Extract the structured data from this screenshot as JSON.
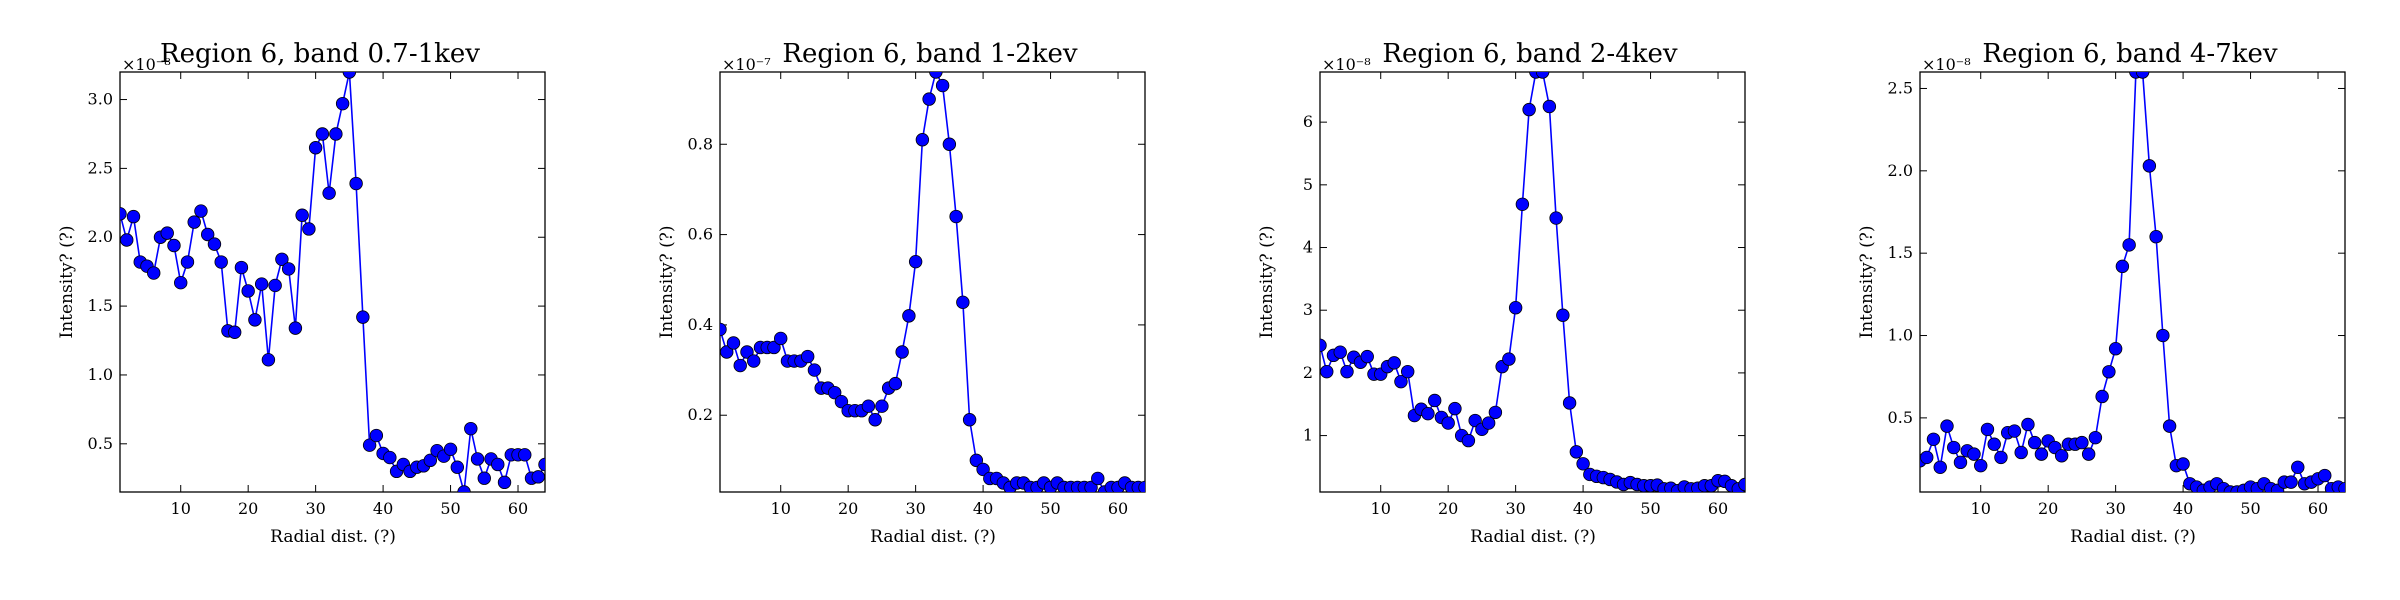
{
  "chart_data": [
    {
      "type": "line",
      "title": "Region 6, band 0.7-1kev",
      "xlabel": "Radial dist. (?)",
      "ylabel": "Intensity? (?)",
      "y_multiplier_label": "×10⁻⁸",
      "xlim": [
        1,
        64
      ],
      "ylim": [
        0.15,
        3.2
      ],
      "xticks": [
        10,
        20,
        30,
        40,
        50,
        60
      ],
      "yticks": [
        0.5,
        1.0,
        1.5,
        2.0,
        2.5,
        3.0
      ],
      "ytick_labels": [
        "0.5",
        "1.0",
        "1.5",
        "2.0",
        "2.5",
        "3.0"
      ],
      "series_color": "#0000ff",
      "series": [
        {
          "x": [
            1,
            2,
            3,
            4,
            5,
            6,
            7,
            8,
            9,
            10,
            11,
            12,
            13,
            14,
            15,
            16,
            17,
            18,
            19,
            20,
            21,
            22,
            23,
            24,
            25,
            26,
            27,
            28,
            29,
            30,
            31,
            32,
            33,
            34,
            35,
            36,
            37,
            38,
            39,
            40,
            41,
            42,
            43,
            44,
            45,
            46,
            47,
            48,
            49,
            50,
            51,
            52,
            53,
            54,
            55,
            56,
            57,
            58,
            59,
            60,
            61,
            62,
            63,
            64
          ],
          "y": [
            2.17,
            1.98,
            2.15,
            1.82,
            1.79,
            1.74,
            2.0,
            2.03,
            1.94,
            1.67,
            1.82,
            2.11,
            2.19,
            2.02,
            1.95,
            1.82,
            1.32,
            1.31,
            1.78,
            1.61,
            1.4,
            1.66,
            1.11,
            1.65,
            1.84,
            1.77,
            1.34,
            2.16,
            2.06,
            2.65,
            2.75,
            2.32,
            2.75,
            2.97,
            3.2,
            2.39,
            1.42,
            0.49,
            0.56,
            0.43,
            0.4,
            0.3,
            0.35,
            0.3,
            0.33,
            0.34,
            0.38,
            0.45,
            0.41,
            0.46,
            0.33,
            0.15,
            0.61,
            0.39,
            0.25,
            0.39,
            0.35,
            0.22,
            0.42,
            0.42,
            0.42,
            0.25,
            0.26,
            0.35
          ]
        }
      ]
    },
    {
      "type": "line",
      "title": "Region 6, band 1-2kev",
      "xlabel": "Radial dist. (?)",
      "ylabel": "Intensity? (?)",
      "y_multiplier_label": "×10⁻⁷",
      "xlim": [
        1,
        64
      ],
      "ylim": [
        0.03,
        0.96
      ],
      "xticks": [
        10,
        20,
        30,
        40,
        50,
        60
      ],
      "yticks": [
        0.2,
        0.4,
        0.6,
        0.8
      ],
      "ytick_labels": [
        "0.2",
        "0.4",
        "0.6",
        "0.8"
      ],
      "series_color": "#0000ff",
      "series": [
        {
          "x": [
            1,
            2,
            3,
            4,
            5,
            6,
            7,
            8,
            9,
            10,
            11,
            12,
            13,
            14,
            15,
            16,
            17,
            18,
            19,
            20,
            21,
            22,
            23,
            24,
            25,
            26,
            27,
            28,
            29,
            30,
            31,
            32,
            33,
            34,
            35,
            36,
            37,
            38,
            39,
            40,
            41,
            42,
            43,
            44,
            45,
            46,
            47,
            48,
            49,
            50,
            51,
            52,
            53,
            54,
            55,
            56,
            57,
            58,
            59,
            60,
            61,
            62,
            63,
            64
          ],
          "y": [
            0.39,
            0.34,
            0.36,
            0.31,
            0.34,
            0.32,
            0.35,
            0.35,
            0.35,
            0.37,
            0.32,
            0.32,
            0.32,
            0.33,
            0.3,
            0.26,
            0.26,
            0.25,
            0.23,
            0.21,
            0.21,
            0.21,
            0.22,
            0.19,
            0.22,
            0.26,
            0.27,
            0.34,
            0.42,
            0.54,
            0.81,
            0.9,
            0.96,
            0.93,
            0.8,
            0.64,
            0.45,
            0.19,
            0.1,
            0.08,
            0.06,
            0.06,
            0.05,
            0.04,
            0.05,
            0.05,
            0.04,
            0.04,
            0.05,
            0.04,
            0.05,
            0.04,
            0.04,
            0.04,
            0.04,
            0.04,
            0.06,
            0.03,
            0.04,
            0.04,
            0.05,
            0.04,
            0.04,
            0.04
          ]
        }
      ]
    },
    {
      "type": "line",
      "title": "Region 6, band 2-4kev",
      "xlabel": "Radial dist. (?)",
      "ylabel": "Intensity? (?)",
      "y_multiplier_label": "×10⁻⁸",
      "xlim": [
        1,
        64
      ],
      "ylim": [
        0.1,
        6.8
      ],
      "xticks": [
        10,
        20,
        30,
        40,
        50,
        60
      ],
      "yticks": [
        1,
        2,
        3,
        4,
        5,
        6
      ],
      "ytick_labels": [
        "1",
        "2",
        "3",
        "4",
        "5",
        "6"
      ],
      "series_color": "#0000ff",
      "series": [
        {
          "x": [
            1,
            2,
            3,
            4,
            5,
            6,
            7,
            8,
            9,
            10,
            11,
            12,
            13,
            14,
            15,
            16,
            17,
            18,
            19,
            20,
            21,
            22,
            23,
            24,
            25,
            26,
            27,
            28,
            29,
            30,
            31,
            32,
            33,
            34,
            35,
            36,
            37,
            38,
            39,
            40,
            41,
            42,
            43,
            44,
            45,
            46,
            47,
            48,
            49,
            50,
            51,
            52,
            53,
            54,
            55,
            56,
            57,
            58,
            59,
            60,
            61,
            62,
            63,
            64
          ],
          "y": [
            2.44,
            2.02,
            2.28,
            2.33,
            2.02,
            2.25,
            2.17,
            2.26,
            1.98,
            1.98,
            2.1,
            2.16,
            1.86,
            2.02,
            1.32,
            1.42,
            1.35,
            1.56,
            1.29,
            1.2,
            1.43,
            1.0,
            0.92,
            1.24,
            1.1,
            1.2,
            1.37,
            2.1,
            2.22,
            3.04,
            4.69,
            6.2,
            6.8,
            6.8,
            6.25,
            4.47,
            2.92,
            1.52,
            0.74,
            0.55,
            0.38,
            0.35,
            0.33,
            0.3,
            0.26,
            0.22,
            0.25,
            0.22,
            0.2,
            0.2,
            0.21,
            0.15,
            0.16,
            0.12,
            0.18,
            0.15,
            0.16,
            0.2,
            0.2,
            0.28,
            0.27,
            0.2,
            0.15,
            0.22
          ]
        }
      ]
    },
    {
      "type": "line",
      "title": "Region 6, band 4-7kev",
      "xlabel": "Radial dist. (?)",
      "ylabel": "Intensity? (?)",
      "y_multiplier_label": "×10⁻⁸",
      "xlim": [
        1,
        64
      ],
      "ylim": [
        0.05,
        2.6
      ],
      "xticks": [
        10,
        20,
        30,
        40,
        50,
        60
      ],
      "yticks": [
        0.5,
        1.0,
        1.5,
        2.0,
        2.5
      ],
      "ytick_labels": [
        "0.5",
        "1.0",
        "1.5",
        "2.0",
        "2.5"
      ],
      "series_color": "#0000ff",
      "series": [
        {
          "x": [
            1,
            2,
            3,
            4,
            5,
            6,
            7,
            8,
            9,
            10,
            11,
            12,
            13,
            14,
            15,
            16,
            17,
            18,
            19,
            20,
            21,
            22,
            23,
            24,
            25,
            26,
            27,
            28,
            29,
            30,
            31,
            32,
            33,
            34,
            35,
            36,
            37,
            38,
            39,
            40,
            41,
            42,
            43,
            44,
            45,
            46,
            47,
            48,
            49,
            50,
            51,
            52,
            53,
            54,
            55,
            56,
            57,
            58,
            59,
            60,
            61,
            62,
            63,
            64
          ],
          "y": [
            0.24,
            0.26,
            0.37,
            0.2,
            0.45,
            0.32,
            0.23,
            0.3,
            0.28,
            0.21,
            0.43,
            0.34,
            0.26,
            0.41,
            0.42,
            0.29,
            0.46,
            0.35,
            0.28,
            0.36,
            0.32,
            0.27,
            0.34,
            0.34,
            0.35,
            0.28,
            0.38,
            0.63,
            0.78,
            0.92,
            1.42,
            1.55,
            2.6,
            2.6,
            2.03,
            1.6,
            1.0,
            0.45,
            0.21,
            0.22,
            0.1,
            0.08,
            0.06,
            0.08,
            0.1,
            0.07,
            0.05,
            0.05,
            0.06,
            0.08,
            0.07,
            0.1,
            0.07,
            0.06,
            0.11,
            0.11,
            0.2,
            0.1,
            0.11,
            0.13,
            0.15,
            0.07,
            0.08,
            0.07
          ]
        }
      ]
    }
  ]
}
